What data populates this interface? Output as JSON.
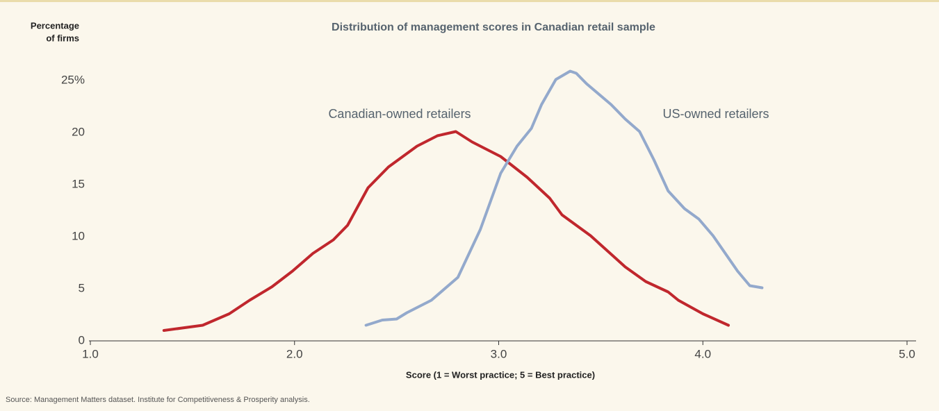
{
  "chart_data": {
    "type": "line",
    "title": "Distribution of management scores in Canadian retail sample",
    "ylabel": [
      "Percentage",
      "of firms"
    ],
    "xlabel": "Score (1 = Worst practice; 5 = Best practice)",
    "source": "Source: Management Matters dataset. Institute for Competitiveness & Prosperity analysis.",
    "xlim": [
      1,
      5
    ],
    "xticks": [
      {
        "value": 1,
        "label": "1.0"
      },
      {
        "value": 2,
        "label": "2.0"
      },
      {
        "value": 3,
        "label": "3.0"
      },
      {
        "value": 4,
        "label": "4.0"
      },
      {
        "value": 5,
        "label": "5.0"
      }
    ],
    "ylim": [
      0,
      27
    ],
    "yticks": [
      0,
      5,
      10,
      15,
      20,
      {
        "value": 25,
        "label": "25%"
      }
    ],
    "series": [
      {
        "name": "Canadian-owned retailers",
        "color": "#c0272d",
        "x": [
          1.36,
          1.55,
          1.68,
          1.78,
          1.89,
          1.99,
          2.09,
          2.19,
          2.26,
          2.36,
          2.46,
          2.6,
          2.7,
          2.79,
          2.87,
          3.01,
          3.14,
          3.25,
          3.31,
          3.45,
          3.62,
          3.72,
          3.83,
          3.88,
          4.0,
          4.125
        ],
        "values": [
          1.0,
          1.5,
          2.6,
          3.9,
          5.2,
          6.7,
          8.4,
          9.7,
          11.1,
          14.7,
          16.7,
          18.7,
          19.7,
          20.1,
          19.1,
          17.7,
          15.7,
          13.7,
          12.1,
          10.1,
          7.1,
          5.7,
          4.7,
          3.9,
          2.6,
          1.5
        ]
      },
      {
        "name": "US-owned retailers",
        "color": "#93a9cc",
        "x": [
          2.35,
          2.43,
          2.5,
          2.55,
          2.67,
          2.8,
          2.91,
          3.01,
          3.09,
          3.16,
          3.21,
          3.28,
          3.35,
          3.38,
          3.43,
          3.55,
          3.62,
          3.69,
          3.76,
          3.83,
          3.91,
          3.98,
          4.05,
          4.17,
          4.23,
          4.29
        ],
        "values": [
          1.5,
          2.0,
          2.1,
          2.7,
          3.9,
          6.1,
          10.7,
          16.1,
          18.7,
          20.4,
          22.7,
          25.1,
          25.9,
          25.7,
          24.7,
          22.7,
          21.3,
          20.1,
          17.4,
          14.4,
          12.7,
          11.7,
          10.1,
          6.7,
          5.3,
          5.1
        ]
      }
    ]
  }
}
